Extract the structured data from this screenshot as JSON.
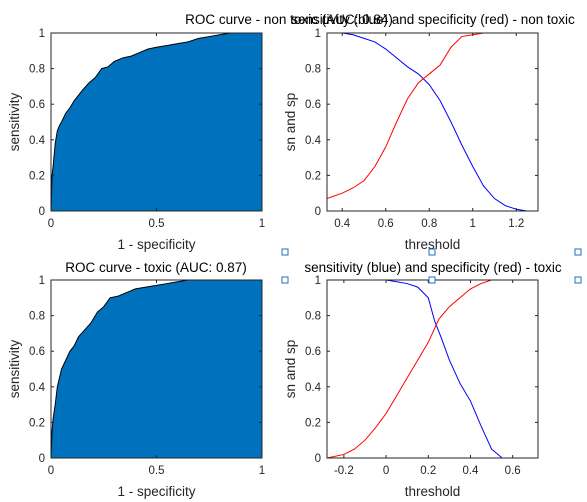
{
  "chart_data": [
    {
      "type": "area",
      "title": "ROC curve - non toxic (AUC: 0.84)",
      "xlabel": "1 - specificity",
      "ylabel": "sensitivity",
      "xlim": [
        0,
        1
      ],
      "ylim": [
        0,
        1
      ],
      "xticks": [
        "0",
        "0.5",
        "1"
      ],
      "yticks": [
        "0",
        "0.2",
        "0.4",
        "0.6",
        "0.8",
        "1"
      ],
      "fill_color": "#0072BD",
      "x": [
        0,
        0.005,
        0.01,
        0.02,
        0.03,
        0.04,
        0.05,
        0.07,
        0.09,
        0.11,
        0.13,
        0.15,
        0.18,
        0.21,
        0.24,
        0.27,
        0.3,
        0.34,
        0.38,
        0.42,
        0.46,
        0.5,
        0.55,
        0.6,
        0.65,
        0.7,
        0.75,
        0.8,
        0.85,
        0.9,
        0.95,
        1.0
      ],
      "y": [
        0,
        0.2,
        0.25,
        0.38,
        0.45,
        0.48,
        0.5,
        0.55,
        0.58,
        0.62,
        0.65,
        0.68,
        0.72,
        0.75,
        0.8,
        0.81,
        0.84,
        0.86,
        0.87,
        0.89,
        0.91,
        0.92,
        0.93,
        0.94,
        0.95,
        0.97,
        0.98,
        0.99,
        1.0,
        1.0,
        1.0,
        1.0
      ]
    },
    {
      "type": "line",
      "title": "sensitivity (blue) and specificity (red) - non toxic",
      "xlabel": "threshold",
      "ylabel": "sn and sp",
      "xlim": [
        0.33,
        1.3
      ],
      "ylim": [
        0,
        1
      ],
      "xticks": [
        "0.4",
        "0.6",
        "0.8",
        "1",
        "1.2"
      ],
      "yticks": [
        "0",
        "0.2",
        "0.4",
        "0.6",
        "0.8",
        "1"
      ],
      "series": [
        {
          "color": "#0000FF",
          "x": [
            0.33,
            0.4,
            0.45,
            0.5,
            0.55,
            0.6,
            0.65,
            0.7,
            0.75,
            0.8,
            0.85,
            0.9,
            0.95,
            1.0,
            1.05,
            1.1,
            1.15,
            1.2,
            1.25,
            1.3
          ],
          "y": [
            1.0,
            1.0,
            0.99,
            0.97,
            0.95,
            0.91,
            0.86,
            0.81,
            0.77,
            0.71,
            0.62,
            0.5,
            0.37,
            0.25,
            0.14,
            0.07,
            0.03,
            0.01,
            0.0,
            0.0
          ]
        },
        {
          "color": "#FF0000",
          "x": [
            0.33,
            0.4,
            0.45,
            0.5,
            0.55,
            0.6,
            0.65,
            0.7,
            0.75,
            0.8,
            0.85,
            0.9,
            0.95,
            1.0,
            1.05,
            1.1,
            1.2,
            1.3
          ],
          "y": [
            0.07,
            0.1,
            0.13,
            0.17,
            0.25,
            0.36,
            0.5,
            0.63,
            0.72,
            0.77,
            0.82,
            0.92,
            0.98,
            0.99,
            1.0,
            1.0,
            1.0,
            1.0
          ]
        }
      ]
    },
    {
      "type": "area",
      "title": "ROC curve - toxic (AUC: 0.87)",
      "xlabel": "1 - specificity",
      "ylabel": "sensitivity",
      "xlim": [
        0,
        1
      ],
      "ylim": [
        0,
        1
      ],
      "xticks": [
        "0",
        "0.5",
        "1"
      ],
      "yticks": [
        "0",
        "0.2",
        "0.4",
        "0.6",
        "0.8",
        "1"
      ],
      "fill_color": "#0072BD",
      "x": [
        0,
        0.005,
        0.01,
        0.02,
        0.03,
        0.05,
        0.07,
        0.09,
        0.11,
        0.13,
        0.16,
        0.19,
        0.22,
        0.25,
        0.28,
        0.32,
        0.36,
        0.4,
        0.45,
        0.5,
        0.55,
        0.6,
        0.65,
        0.7,
        0.75,
        0.8,
        0.85,
        0.9,
        1.0
      ],
      "y": [
        0,
        0.15,
        0.22,
        0.3,
        0.4,
        0.5,
        0.55,
        0.6,
        0.63,
        0.68,
        0.72,
        0.76,
        0.82,
        0.85,
        0.9,
        0.91,
        0.93,
        0.95,
        0.96,
        0.97,
        0.98,
        0.99,
        1.0,
        1.0,
        1.0,
        1.0,
        1.0,
        1.0,
        1.0
      ]
    },
    {
      "type": "line",
      "title": "sensitivity (blue) and specificity (red) - toxic",
      "xlabel": "threshold",
      "ylabel": "sn and sp",
      "xlim": [
        -0.28,
        0.72
      ],
      "ylim": [
        0,
        1
      ],
      "xticks": [
        "-0.2",
        "0",
        "0.2",
        "0.4",
        "0.6"
      ],
      "yticks": [
        "0",
        "0.2",
        "0.4",
        "0.6",
        "0.8",
        "1"
      ],
      "series": [
        {
          "color": "#0000FF",
          "x": [
            -0.28,
            -0.2,
            -0.1,
            0.0,
            0.05,
            0.1,
            0.15,
            0.2,
            0.23,
            0.26,
            0.3,
            0.35,
            0.4,
            0.45,
            0.5,
            0.55,
            0.6,
            0.72
          ],
          "y": [
            1.0,
            1.0,
            1.0,
            1.0,
            0.99,
            0.98,
            0.96,
            0.9,
            0.77,
            0.68,
            0.55,
            0.42,
            0.32,
            0.18,
            0.05,
            0.0,
            0.0,
            0.0
          ]
        },
        {
          "color": "#FF0000",
          "x": [
            -0.28,
            -0.2,
            -0.15,
            -0.1,
            -0.05,
            0.0,
            0.05,
            0.1,
            0.15,
            0.2,
            0.25,
            0.3,
            0.35,
            0.4,
            0.45,
            0.5,
            0.55,
            0.72
          ],
          "y": [
            0.0,
            0.02,
            0.05,
            0.1,
            0.17,
            0.25,
            0.35,
            0.45,
            0.55,
            0.65,
            0.78,
            0.85,
            0.9,
            0.95,
            0.98,
            1.0,
            1.0,
            1.0
          ]
        }
      ]
    }
  ]
}
